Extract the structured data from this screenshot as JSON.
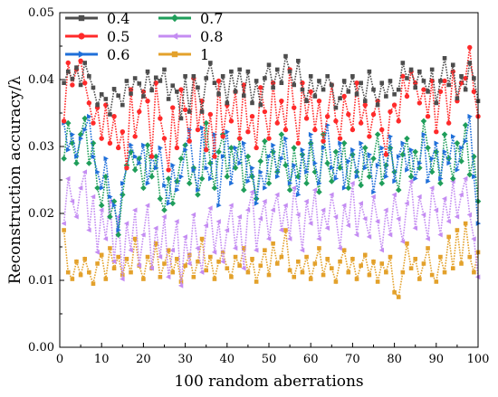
{
  "chart_data": {
    "type": "line",
    "xlabel": "100 random aberrations",
    "ylabel": "Reconstruction accuracy/λ",
    "xlim": [
      0,
      100
    ],
    "ylim": [
      0,
      0.05
    ],
    "x_ticks": [
      "0",
      "10",
      "20",
      "30",
      "40",
      "50",
      "60",
      "70",
      "80",
      "90",
      "100"
    ],
    "y_ticks": [
      "0.00",
      "0.01",
      "0.02",
      "0.03",
      "0.04",
      "0.05"
    ],
    "legend_position": "top-left, two columns",
    "grid": false,
    "x": [
      1,
      2,
      3,
      4,
      5,
      6,
      7,
      8,
      9,
      10,
      11,
      12,
      13,
      14,
      15,
      16,
      17,
      18,
      19,
      20,
      21,
      22,
      23,
      24,
      25,
      26,
      27,
      28,
      29,
      30,
      31,
      32,
      33,
      34,
      35,
      36,
      37,
      38,
      39,
      40,
      41,
      42,
      43,
      44,
      45,
      46,
      47,
      48,
      49,
      50,
      51,
      52,
      53,
      54,
      55,
      56,
      57,
      58,
      59,
      60,
      61,
      62,
      63,
      64,
      65,
      66,
      67,
      68,
      69,
      70,
      71,
      72,
      73,
      74,
      75,
      76,
      77,
      78,
      79,
      80,
      81,
      82,
      83,
      84,
      85,
      86,
      87,
      88,
      89,
      90,
      91,
      92,
      93,
      94,
      95,
      96,
      97,
      98,
      99,
      100
    ],
    "series": [
      {
        "name": "0.4",
        "color": "#4d4d4d",
        "marker": "square",
        "values": [
          0.0395,
          0.0412,
          0.0401,
          0.0418,
          0.0392,
          0.0425,
          0.0405,
          0.0388,
          0.0362,
          0.0378,
          0.0371,
          0.0348,
          0.0386,
          0.0376,
          0.0362,
          0.0398,
          0.0379,
          0.0402,
          0.0394,
          0.0375,
          0.0412,
          0.0384,
          0.0403,
          0.0398,
          0.0415,
          0.0371,
          0.0391,
          0.0382,
          0.0342,
          0.0405,
          0.0352,
          0.0405,
          0.0388,
          0.0352,
          0.0402,
          0.0425,
          0.0395,
          0.0378,
          0.0405,
          0.0365,
          0.0412,
          0.0382,
          0.0415,
          0.0376,
          0.0412,
          0.0365,
          0.0398,
          0.0362,
          0.0402,
          0.0422,
          0.0388,
          0.0415,
          0.0395,
          0.0435,
          0.0412,
          0.0392,
          0.0428,
          0.0385,
          0.0368,
          0.0405,
          0.0375,
          0.0398,
          0.0385,
          0.0405,
          0.0392,
          0.0358,
          0.0372,
          0.0398,
          0.0382,
          0.0405,
          0.0378,
          0.0395,
          0.0368,
          0.0412,
          0.0385,
          0.0362,
          0.0395,
          0.0375,
          0.0398,
          0.0378,
          0.0385,
          0.0425,
          0.0402,
          0.0415,
          0.0388,
          0.0412,
          0.0398,
          0.0382,
          0.0415,
          0.0365,
          0.0398,
          0.0432,
          0.0392,
          0.0422,
          0.0372,
          0.0405,
          0.0385,
          0.0425,
          0.0402,
          0.0368
        ]
      },
      {
        "name": "0.5",
        "color": "#ff2a2a",
        "marker": "circle",
        "values": [
          0.0338,
          0.0425,
          0.0392,
          0.0415,
          0.0428,
          0.0395,
          0.0365,
          0.0335,
          0.0358,
          0.0312,
          0.0362,
          0.0305,
          0.0345,
          0.0298,
          0.0322,
          0.0268,
          0.0385,
          0.0315,
          0.0352,
          0.0382,
          0.0368,
          0.0285,
          0.0395,
          0.0342,
          0.0312,
          0.0265,
          0.0358,
          0.0298,
          0.0385,
          0.0355,
          0.0308,
          0.0402,
          0.0325,
          0.0368,
          0.0295,
          0.0348,
          0.0285,
          0.0398,
          0.0315,
          0.0362,
          0.0338,
          0.0382,
          0.0312,
          0.0392,
          0.0322,
          0.0345,
          0.0298,
          0.0388,
          0.0352,
          0.0312,
          0.0395,
          0.0335,
          0.0368,
          0.0325,
          0.0415,
          0.0358,
          0.0305,
          0.0395,
          0.0342,
          0.0382,
          0.0325,
          0.0368,
          0.0308,
          0.0345,
          0.0392,
          0.0338,
          0.0312,
          0.0375,
          0.0348,
          0.0325,
          0.0395,
          0.0335,
          0.0362,
          0.0315,
          0.0348,
          0.0368,
          0.0325,
          0.0288,
          0.0352,
          0.0362,
          0.0338,
          0.0405,
          0.0375,
          0.0412,
          0.0395,
          0.0365,
          0.0385,
          0.0345,
          0.0398,
          0.0322,
          0.0382,
          0.0398,
          0.0335,
          0.0412,
          0.0368,
          0.0395,
          0.0402,
          0.0448,
          0.0382,
          0.0345
        ]
      },
      {
        "name": "0.6",
        "color": "#1f6fd9",
        "marker": "triangle-right",
        "values": [
          0.0335,
          0.0295,
          0.0318,
          0.0285,
          0.0312,
          0.0325,
          0.0345,
          0.0285,
          0.0262,
          0.0238,
          0.0282,
          0.0225,
          0.0212,
          0.0175,
          0.0245,
          0.0268,
          0.0302,
          0.0285,
          0.0275,
          0.0302,
          0.0245,
          0.0285,
          0.0268,
          0.0298,
          0.0242,
          0.0215,
          0.0272,
          0.0235,
          0.0255,
          0.0295,
          0.0325,
          0.0265,
          0.0235,
          0.0328,
          0.0268,
          0.0252,
          0.0318,
          0.0212,
          0.0285,
          0.0322,
          0.0245,
          0.0298,
          0.0275,
          0.0305,
          0.0248,
          0.0268,
          0.0215,
          0.0262,
          0.0238,
          0.0285,
          0.0302,
          0.0255,
          0.0282,
          0.0312,
          0.0245,
          0.0272,
          0.0228,
          0.0295,
          0.0262,
          0.0318,
          0.0275,
          0.0245,
          0.0298,
          0.0332,
          0.0268,
          0.0252,
          0.0305,
          0.0238,
          0.0278,
          0.0295,
          0.0255,
          0.0305,
          0.0268,
          0.0288,
          0.0232,
          0.0272,
          0.0298,
          0.0255,
          0.0315,
          0.0248,
          0.0285,
          0.0305,
          0.0265,
          0.0295,
          0.0252,
          0.0275,
          0.0318,
          0.0248,
          0.0282,
          0.0305,
          0.0252,
          0.0292,
          0.0275,
          0.0315,
          0.0265,
          0.0298,
          0.0308,
          0.0345,
          0.0255,
          0.0185
        ]
      },
      {
        "name": "0.7",
        "color": "#1f9e5a",
        "marker": "diamond",
        "values": [
          0.0282,
          0.0335,
          0.0305,
          0.0275,
          0.0318,
          0.0342,
          0.0275,
          0.0305,
          0.0238,
          0.0212,
          0.0255,
          0.0195,
          0.0218,
          0.0168,
          0.0228,
          0.0272,
          0.0292,
          0.0265,
          0.0282,
          0.0238,
          0.0302,
          0.0255,
          0.0285,
          0.0222,
          0.0205,
          0.0252,
          0.0215,
          0.0248,
          0.0282,
          0.0302,
          0.0245,
          0.0268,
          0.0228,
          0.0252,
          0.0335,
          0.0275,
          0.0238,
          0.0292,
          0.0318,
          0.0255,
          0.0298,
          0.0268,
          0.0312,
          0.0235,
          0.0285,
          0.0255,
          0.0222,
          0.0278,
          0.0308,
          0.0245,
          0.0292,
          0.0262,
          0.0318,
          0.0272,
          0.0235,
          0.0298,
          0.0255,
          0.0288,
          0.0245,
          0.0305,
          0.0262,
          0.0232,
          0.0318,
          0.0275,
          0.0248,
          0.0292,
          0.0268,
          0.0305,
          0.0238,
          0.0288,
          0.0262,
          0.0242,
          0.0298,
          0.0255,
          0.0282,
          0.0318,
          0.0245,
          0.0272,
          0.0298,
          0.0262,
          0.0235,
          0.0288,
          0.0312,
          0.0255,
          0.0292,
          0.0268,
          0.0338,
          0.0298,
          0.0262,
          0.0292,
          0.0245,
          0.0318,
          0.0282,
          0.0252,
          0.0305,
          0.0278,
          0.0332,
          0.0258,
          0.0285,
          0.0218
        ]
      },
      {
        "name": "0.8",
        "color": "#c48cf2",
        "marker": "triangle-left",
        "values": [
          0.0185,
          0.0252,
          0.0218,
          0.0195,
          0.0238,
          0.0262,
          0.0175,
          0.0225,
          0.0142,
          0.0205,
          0.0162,
          0.0218,
          0.0128,
          0.0195,
          0.0102,
          0.0185,
          0.0145,
          0.0205,
          0.0122,
          0.0168,
          0.0212,
          0.0118,
          0.0178,
          0.0135,
          0.0195,
          0.0105,
          0.0145,
          0.0188,
          0.0092,
          0.0165,
          0.0125,
          0.0198,
          0.0148,
          0.0112,
          0.0182,
          0.0208,
          0.0142,
          0.0188,
          0.0128,
          0.0175,
          0.0212,
          0.0148,
          0.0195,
          0.0118,
          0.0205,
          0.0232,
          0.0145,
          0.0192,
          0.0218,
          0.0162,
          0.0205,
          0.0228,
          0.0175,
          0.0212,
          0.0162,
          0.0238,
          0.0198,
          0.0145,
          0.0218,
          0.0185,
          0.0235,
          0.0162,
          0.0205,
          0.0178,
          0.0228,
          0.0195,
          0.0148,
          0.0212,
          0.0182,
          0.0245,
          0.0168,
          0.0215,
          0.0192,
          0.0165,
          0.0225,
          0.0188,
          0.0145,
          0.0205,
          0.0168,
          0.0228,
          0.0192,
          0.0158,
          0.0215,
          0.0248,
          0.0178,
          0.0225,
          0.0198,
          0.0162,
          0.0238,
          0.0205,
          0.0168,
          0.0222,
          0.0188,
          0.0248,
          0.0195,
          0.0228,
          0.0252,
          0.0198,
          0.0162,
          0.0105
        ]
      },
      {
        "name": "1",
        "color": "#e3a12b",
        "marker": "square",
        "values": [
          0.0175,
          0.0112,
          0.0102,
          0.0128,
          0.0108,
          0.0132,
          0.0112,
          0.0095,
          0.0125,
          0.0138,
          0.0102,
          0.0148,
          0.0118,
          0.0135,
          0.0108,
          0.0132,
          0.0112,
          0.0162,
          0.0122,
          0.0102,
          0.0135,
          0.0118,
          0.0155,
          0.0105,
          0.0125,
          0.0145,
          0.0112,
          0.0132,
          0.0098,
          0.0122,
          0.0138,
          0.0105,
          0.0128,
          0.0162,
          0.0115,
          0.0135,
          0.0102,
          0.0128,
          0.0142,
          0.0118,
          0.0105,
          0.0135,
          0.0122,
          0.0148,
          0.0112,
          0.0132,
          0.0098,
          0.0122,
          0.0145,
          0.0108,
          0.0155,
          0.0125,
          0.0135,
          0.0175,
          0.0115,
          0.0105,
          0.0128,
          0.0112,
          0.0135,
          0.0102,
          0.0125,
          0.0148,
          0.0108,
          0.0132,
          0.0118,
          0.0098,
          0.0128,
          0.0145,
          0.0112,
          0.0132,
          0.0102,
          0.0122,
          0.0138,
          0.0108,
          0.0128,
          0.0098,
          0.0125,
          0.0112,
          0.0135,
          0.0082,
          0.0075,
          0.0112,
          0.0155,
          0.0118,
          0.0132,
          0.0102,
          0.0125,
          0.0148,
          0.0108,
          0.0098,
          0.0135,
          0.0112,
          0.0165,
          0.0118,
          0.0175,
          0.0125,
          0.0185,
          0.0135,
          0.0112,
          0.0142
        ]
      }
    ]
  }
}
